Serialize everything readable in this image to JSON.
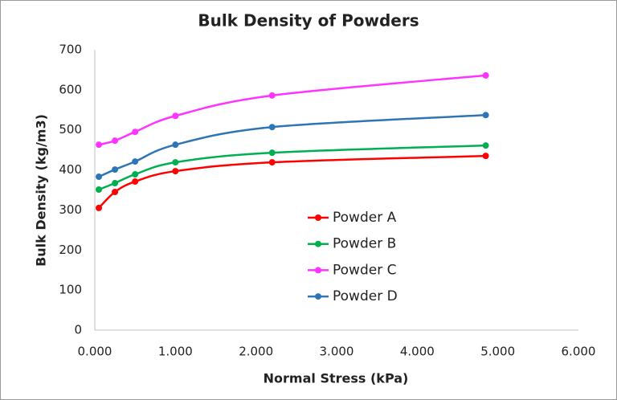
{
  "chart_data": {
    "type": "line",
    "title": "Bulk Density of Powders",
    "x_label": "Normal Stress (kPa)",
    "y_label": "Bulk Density (kg/m3)",
    "x": [
      0.05,
      0.25,
      0.5,
      1.0,
      2.2,
      4.85
    ],
    "series": [
      {
        "name": "Powder A",
        "color": "#ff0000",
        "values": [
          305,
          345,
          371,
          397,
          419,
          435
        ]
      },
      {
        "name": "Powder B",
        "color": "#00b050",
        "values": [
          351,
          367,
          389,
          419,
          443,
          461
        ]
      },
      {
        "name": "Powder C",
        "color": "#ff33ff",
        "values": [
          463,
          473,
          495,
          535,
          586,
          636
        ]
      },
      {
        "name": "Powder D",
        "color": "#2e75b6",
        "values": [
          383,
          401,
          421,
          463,
          507,
          537
        ]
      }
    ],
    "xlim": [
      0,
      6
    ],
    "xticks": [
      {
        "value": 0,
        "label": "0.000"
      },
      {
        "value": 1,
        "label": "1.000"
      },
      {
        "value": 2,
        "label": "2.000"
      },
      {
        "value": 3,
        "label": "3.000"
      },
      {
        "value": 4,
        "label": "4.000"
      },
      {
        "value": 5,
        "label": "5.000"
      },
      {
        "value": 6,
        "label": "6.000"
      }
    ],
    "ylim": [
      0,
      700
    ],
    "yticks": [
      0,
      100,
      200,
      300,
      400,
      500,
      600,
      700
    ],
    "smooth": true
  }
}
